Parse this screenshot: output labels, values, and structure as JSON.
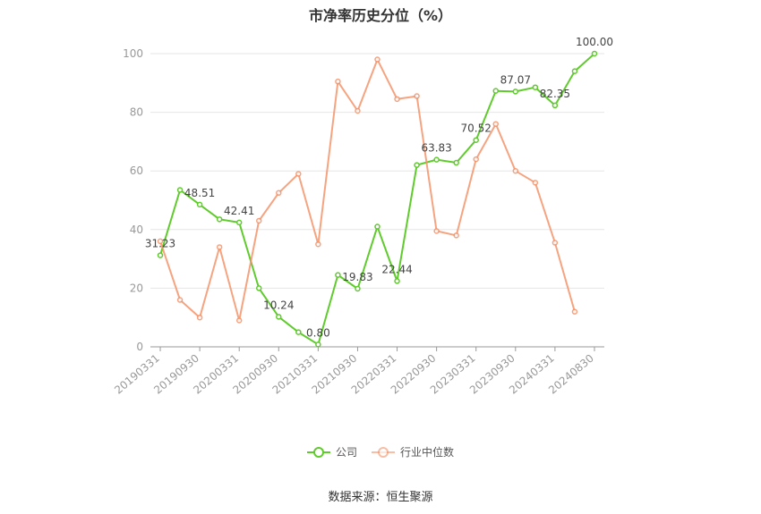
{
  "chart_data": {
    "type": "line",
    "title": "市净率历史分位（%）",
    "ylim": [
      0,
      100
    ],
    "yticks": [
      0,
      20,
      40,
      60,
      80,
      100
    ],
    "xtick_labels": [
      "20190331",
      "20190930",
      "20200331",
      "20200930",
      "20210331",
      "20210930",
      "20220331",
      "20220930",
      "20230331",
      "20230930",
      "20240331",
      "20240830"
    ],
    "xtick_positions": [
      0,
      2,
      4,
      6,
      8,
      10,
      12,
      14,
      16,
      18,
      20,
      22
    ],
    "num_points": 23,
    "series": [
      {
        "name": "公司",
        "color": "#5fcb2c",
        "values": [
          31.23,
          53.5,
          48.51,
          43.5,
          42.41,
          20.0,
          10.24,
          5.0,
          0.8,
          24.5,
          19.83,
          41.0,
          22.44,
          62.0,
          63.83,
          62.8,
          70.52,
          87.3,
          87.07,
          88.5,
          82.35,
          94.0,
          100.0
        ],
        "labels": {
          "0": "31.23",
          "2": "48.51",
          "4": "42.41",
          "6": "10.24",
          "8": "0.80",
          "10": "19.83",
          "12": "22.44",
          "14": "63.83",
          "16": "70.52",
          "18": "87.07",
          "20": "82.35",
          "22": "100.00"
        }
      },
      {
        "name": "行业中位数",
        "color": "#f4936a",
        "values": [
          36.0,
          16.0,
          10.0,
          34.0,
          9.0,
          43.0,
          52.5,
          59.0,
          35.0,
          90.5,
          80.5,
          98.0,
          84.5,
          85.5,
          39.5,
          38.0,
          64.0,
          76.0,
          60.0,
          56.0,
          35.5,
          12.0,
          null
        ]
      }
    ]
  },
  "legend": {
    "company": "公司",
    "industry": "行业中位数"
  },
  "source": "数据来源：恒生聚源"
}
